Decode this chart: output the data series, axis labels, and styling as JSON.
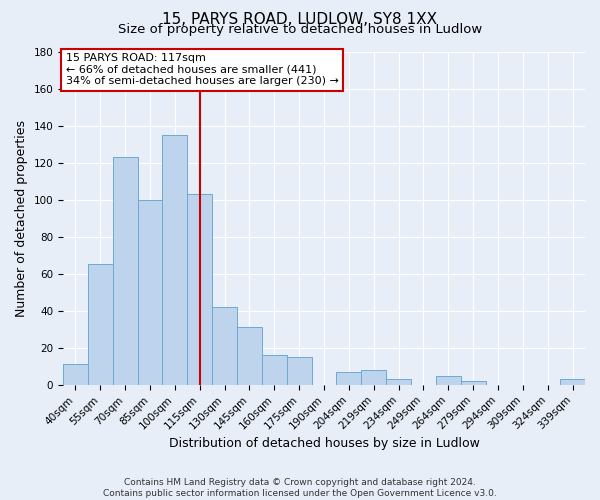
{
  "title": "15, PARYS ROAD, LUDLOW, SY8 1XX",
  "subtitle": "Size of property relative to detached houses in Ludlow",
  "xlabel": "Distribution of detached houses by size in Ludlow",
  "ylabel": "Number of detached properties",
  "bar_labels": [
    "40sqm",
    "55sqm",
    "70sqm",
    "85sqm",
    "100sqm",
    "115sqm",
    "130sqm",
    "145sqm",
    "160sqm",
    "175sqm",
    "190sqm",
    "204sqm",
    "219sqm",
    "234sqm",
    "249sqm",
    "264sqm",
    "279sqm",
    "294sqm",
    "309sqm",
    "324sqm",
    "339sqm"
  ],
  "bar_values": [
    11,
    65,
    123,
    100,
    135,
    103,
    42,
    31,
    16,
    15,
    0,
    7,
    8,
    3,
    0,
    5,
    2,
    0,
    0,
    0,
    3
  ],
  "bar_color": "#bdd4ec",
  "bar_edge_color": "#6aaad4",
  "vline_index": 5,
  "vline_color": "#cc0000",
  "ylim": [
    0,
    180
  ],
  "annotation_title": "15 PARYS ROAD: 117sqm",
  "annotation_line1": "← 66% of detached houses are smaller (441)",
  "annotation_line2": "34% of semi-detached houses are larger (230) →",
  "annotation_box_color": "#ffffff",
  "annotation_box_edge": "#cc0000",
  "footer1": "Contains HM Land Registry data © Crown copyright and database right 2024.",
  "footer2": "Contains public sector information licensed under the Open Government Licence v3.0.",
  "background_color": "#e8eef8",
  "grid_color": "#ffffff",
  "title_fontsize": 11,
  "subtitle_fontsize": 9.5,
  "axis_label_fontsize": 9,
  "tick_fontsize": 7.5,
  "footer_fontsize": 6.5
}
